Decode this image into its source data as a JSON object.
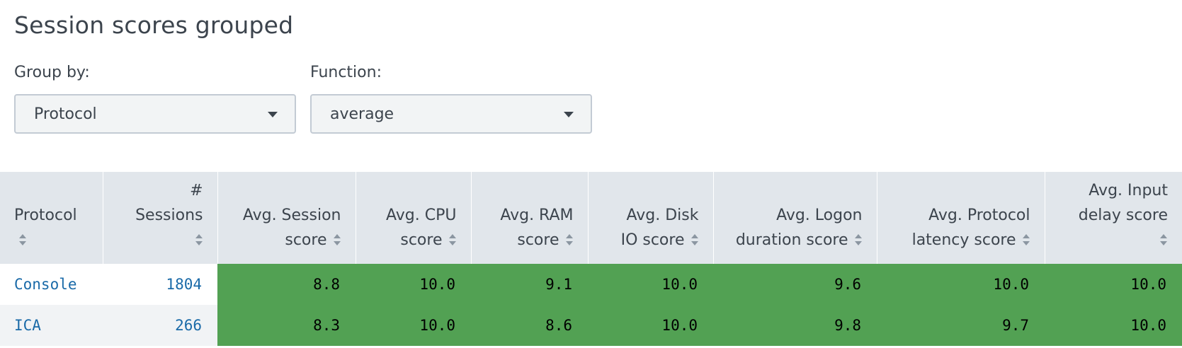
{
  "page": {
    "title": "Session scores grouped"
  },
  "controls": {
    "group_by": {
      "label": "Group by:",
      "value": "Protocol"
    },
    "function": {
      "label": "Function:",
      "value": "average"
    }
  },
  "colors": {
    "score_good": "#52a153",
    "header_bg": "#e1e6eb",
    "link": "#1a6aa8"
  },
  "table": {
    "columns": [
      {
        "line1": "",
        "line2": "Protocol"
      },
      {
        "line1": "#",
        "line2": "Sessions"
      },
      {
        "line1": "Avg. Session",
        "line2": "score"
      },
      {
        "line1": "Avg. CPU",
        "line2": "score"
      },
      {
        "line1": "Avg. RAM",
        "line2": "score"
      },
      {
        "line1": "Avg. Disk",
        "line2": "IO score"
      },
      {
        "line1": "Avg. Logon",
        "line2": "duration score"
      },
      {
        "line1": "Avg. Protocol",
        "line2": "latency score"
      },
      {
        "line1": "Avg. Input",
        "line2": "delay score"
      }
    ],
    "rows": [
      {
        "protocol": "Console",
        "sessions": "1804",
        "session": "8.8",
        "cpu": "10.0",
        "ram": "9.1",
        "disk": "10.0",
        "logon": "9.6",
        "latency": "10.0",
        "input": "10.0"
      },
      {
        "protocol": "ICA",
        "sessions": "266",
        "session": "8.3",
        "cpu": "10.0",
        "ram": "8.6",
        "disk": "10.0",
        "logon": "9.8",
        "latency": "9.7",
        "input": "10.0"
      }
    ]
  }
}
